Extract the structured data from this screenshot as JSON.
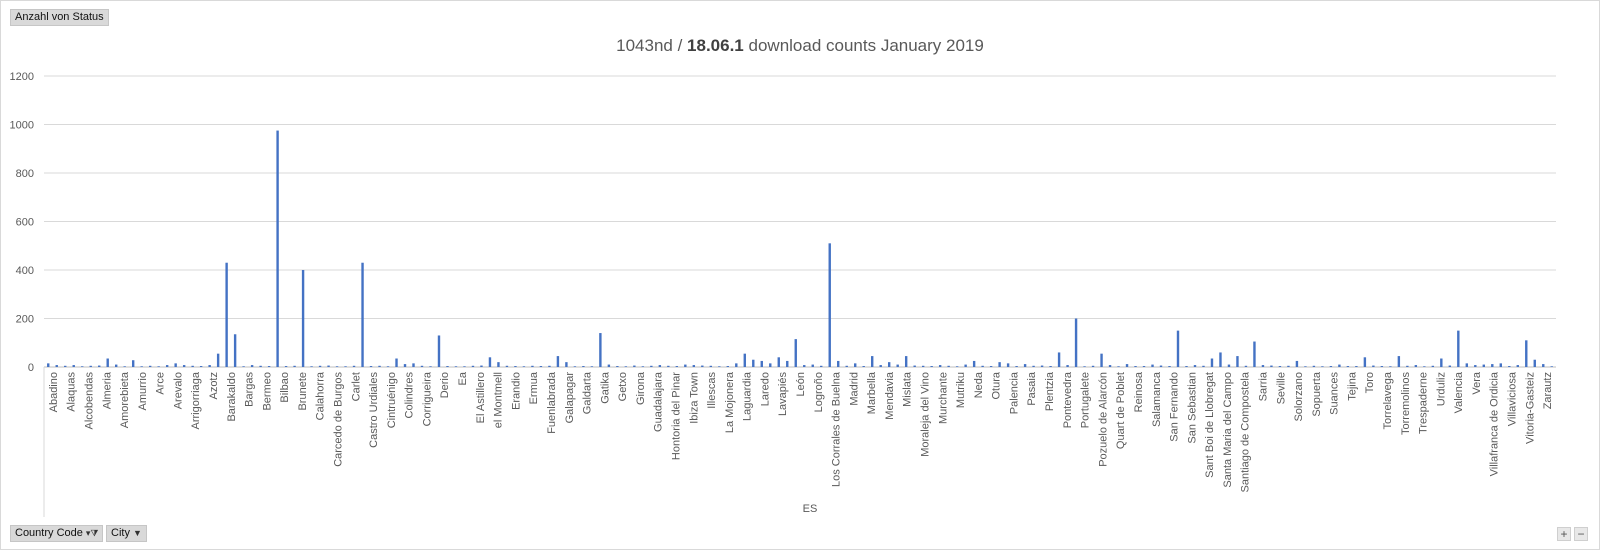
{
  "field_button": {
    "label": "Anzahl von Status"
  },
  "title": {
    "part1": "1043nd / ",
    "bold": "18.06.1",
    "part2": " download counts January 2019"
  },
  "axis_group": "ES",
  "filters": [
    {
      "label": "Country Code",
      "icon": "filter-dropdown-icon"
    },
    {
      "label": "City",
      "icon": "dropdown-arrow-icon"
    }
  ],
  "zoom": {
    "plus": "+",
    "minus": "−"
  },
  "chart_data": {
    "type": "bar",
    "title": "1043nd / 18.06.1 download counts January 2019",
    "group_label": "ES",
    "ylim": [
      0,
      1200
    ],
    "yticks": [
      0,
      200,
      400,
      600,
      800,
      1000,
      1200
    ],
    "grid": true,
    "color": "#4472c4",
    "visible_tick_labels": [
      "Abadino",
      "Alaquas",
      "Alcobendas",
      "Almeria",
      "Amorebieta",
      "Amurrio",
      "Arce",
      "Arevalo",
      "Arrigorriaga",
      "Azotz",
      "Barakaldo",
      "Bargas",
      "Bermeo",
      "Bilbao",
      "Brunete",
      "Calahorra",
      "Carcedo de Burgos",
      "Carlet",
      "Castro Urdiales",
      "Cintruénigo",
      "Colindres",
      "Corrigueira",
      "Derio",
      "Ea",
      "El Astillero",
      "el Montmell",
      "Erandio",
      "Ermua",
      "Fuenlabrada",
      "Galapagar",
      "Galdarta",
      "Gatika",
      "Getxo",
      "Girona",
      "Guadalajara",
      "Hontoria del Pinar",
      "Ibiza Town",
      "Illescas",
      "La Mojonera",
      "Laguardia",
      "Laredo",
      "Lavapiés",
      "León",
      "Logroño",
      "Los Corrales de Buelna",
      "Madrid",
      "Marbella",
      "Mendavia",
      "Mislata",
      "Moraleja del Vino",
      "Murchante",
      "Mutriku",
      "Neda",
      "Otura",
      "Palencia",
      "Pasaia",
      "Plentzia",
      "Pontevedra",
      "Portugalete",
      "Pozuelo de Alarcón",
      "Quart de Poblet",
      "Reinosa",
      "Salamanca",
      "San Fernando",
      "San Sebastian",
      "Sant Boi de Llobregat",
      "Santa Maria del Campo",
      "Santiago de Compostela",
      "Sarria",
      "Seville",
      "Solorzano",
      "Sopuerta",
      "Suances",
      "Tejina",
      "Toro",
      "Torrelavega",
      "Torremolinos",
      "Trespaderne",
      "Urduliz",
      "Valencia",
      "Vera",
      "Villafranca de Ordicia",
      "Villaviciosa",
      "Vitoria-Gasteiz",
      "Zarautz"
    ],
    "values": [
      15,
      8,
      5,
      8,
      3,
      5,
      6,
      35,
      10,
      3,
      28,
      3,
      5,
      3,
      8,
      15,
      8,
      5,
      4,
      8,
      55,
      430,
      135,
      3,
      8,
      5,
      4,
      975,
      4,
      5,
      400,
      3,
      5,
      6,
      3,
      3,
      5,
      430,
      4,
      5,
      3,
      35,
      12,
      15,
      5,
      3,
      130,
      4,
      3,
      3,
      5,
      6,
      40,
      20,
      5,
      4,
      3,
      5,
      4,
      5,
      45,
      20,
      3,
      4,
      3,
      140,
      10,
      4,
      3,
      6,
      3,
      5,
      8,
      5,
      4,
      10,
      8,
      6,
      5,
      3,
      4,
      15,
      55,
      30,
      25,
      15,
      40,
      25,
      115,
      8,
      10,
      5,
      510,
      25,
      5,
      15,
      4,
      45,
      8,
      20,
      10,
      45,
      6,
      5,
      4,
      8,
      5,
      3,
      10,
      25,
      5,
      4,
      20,
      15,
      4,
      12,
      5,
      6,
      4,
      60,
      8,
      200,
      3,
      5,
      55,
      8,
      3,
      12,
      4,
      4,
      10,
      6,
      4,
      150,
      4,
      8,
      5,
      35,
      60,
      10,
      45,
      5,
      105,
      8,
      6,
      4,
      5,
      25,
      3,
      5,
      3,
      4,
      10,
      4,
      4,
      40,
      6,
      4,
      3,
      45,
      5,
      8,
      3,
      5,
      35,
      6,
      150,
      15,
      8,
      10,
      12,
      15,
      4,
      8,
      110,
      30,
      12,
      3
    ]
  }
}
